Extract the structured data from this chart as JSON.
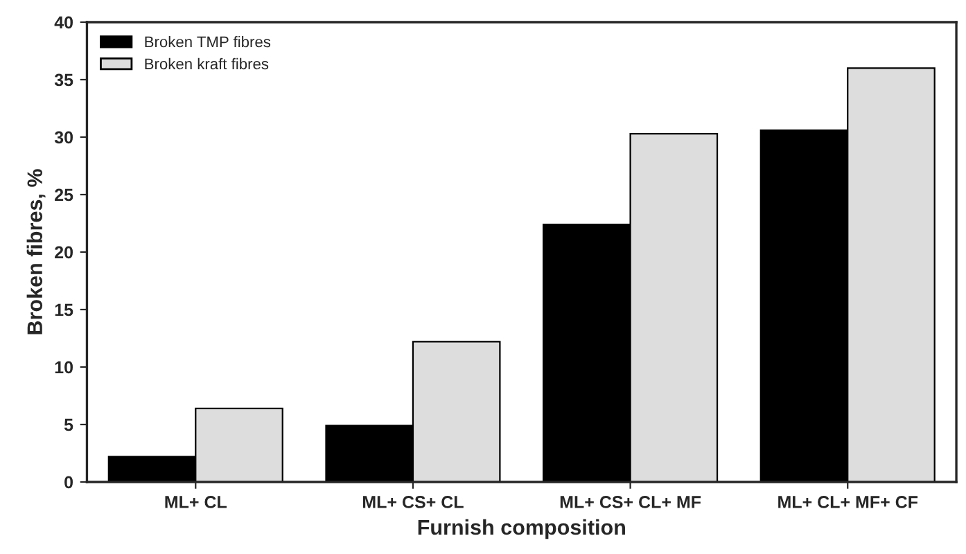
{
  "chart_data": {
    "type": "bar",
    "xlabel": "Furnish composition",
    "ylabel": "Broken fibres, %",
    "categories": [
      "ML+ CL",
      "ML+ CS+ CL",
      "ML+ CS+ CL+ MF",
      "ML+ CL+ MF+ CF"
    ],
    "series": [
      {
        "name": "Broken TMP fibres",
        "color": "#000000",
        "values": [
          2.2,
          4.9,
          22.4,
          30.6
        ]
      },
      {
        "name": "Broken kraft fibres",
        "color": "#dddddd",
        "values": [
          6.4,
          12.2,
          30.3,
          36.0
        ]
      }
    ],
    "ylim": [
      0,
      40
    ],
    "yticks": [
      0,
      5,
      10,
      15,
      20,
      25,
      30,
      35,
      40
    ],
    "grid": false,
    "legend": "top left"
  }
}
